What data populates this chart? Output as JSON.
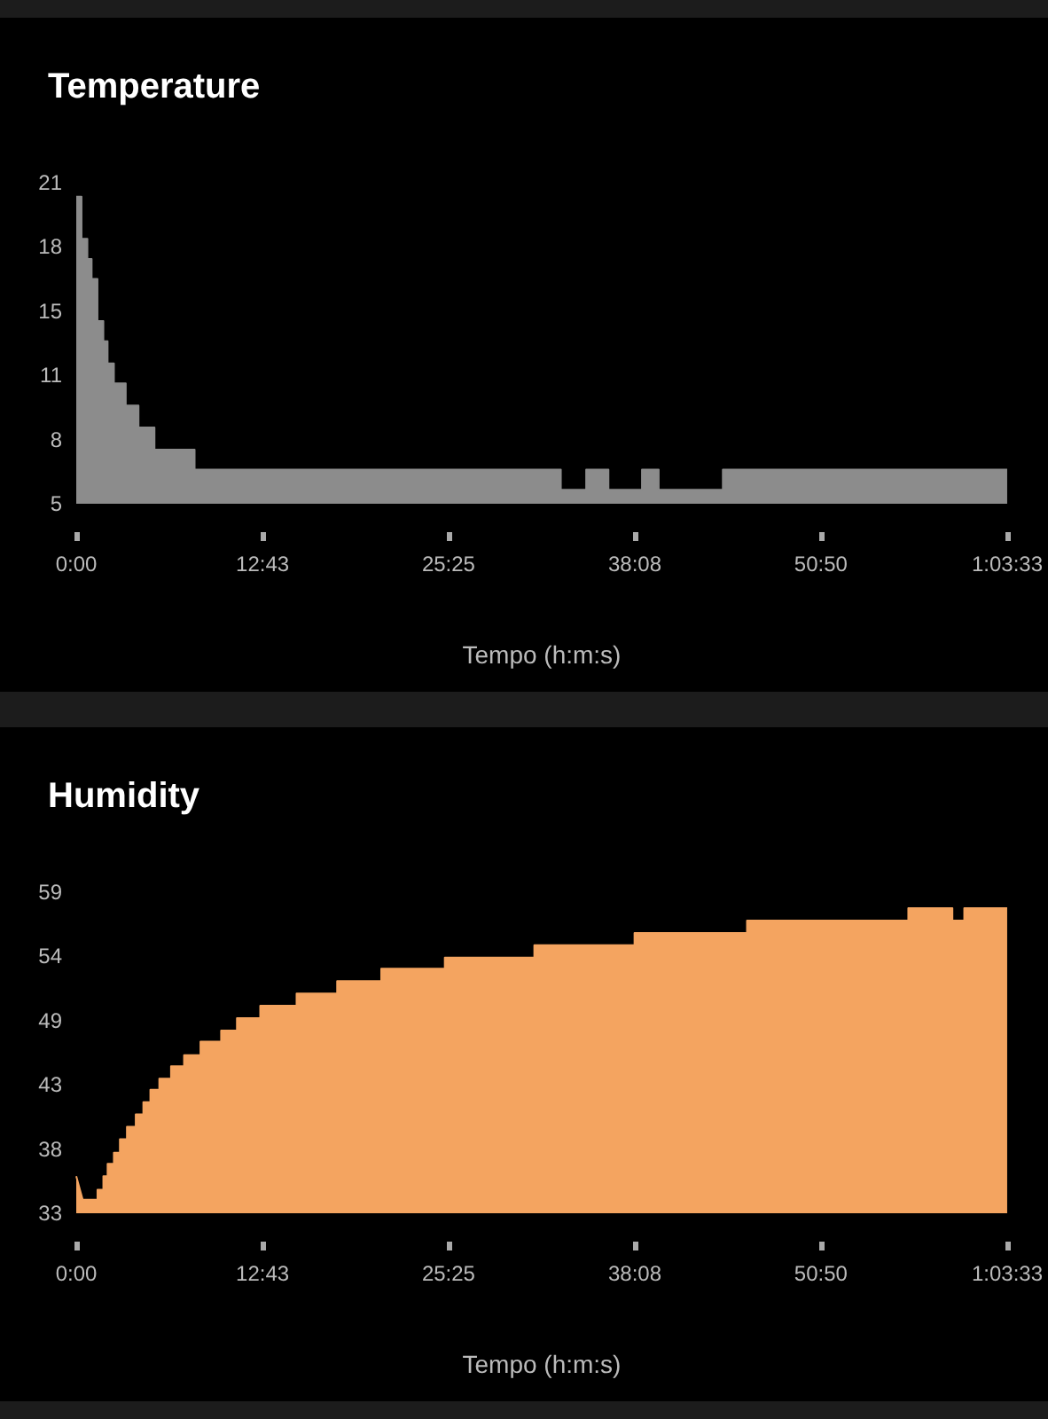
{
  "chart_data": [
    {
      "type": "area",
      "title": "Temperature",
      "xlabel": "Tempo (h:m:s)",
      "color": "#8c8c8c",
      "xlim": [
        0,
        63.55
      ],
      "xticks": [
        {
          "value": 0,
          "label": "0:00"
        },
        {
          "value": 12.7167,
          "label": "12:43"
        },
        {
          "value": 25.4167,
          "label": "25:25"
        },
        {
          "value": 38.1333,
          "label": "38:08"
        },
        {
          "value": 50.8333,
          "label": "50:50"
        },
        {
          "value": 63.55,
          "label": "1:03:33"
        }
      ],
      "ylim": [
        5,
        21
      ],
      "yticks": [
        5,
        {
          "value": 8.2,
          "label": "8"
        },
        {
          "value": 11.4,
          "label": "11"
        },
        {
          "value": 14.6,
          "label": "15"
        },
        {
          "value": 17.8,
          "label": "18"
        },
        21
      ],
      "x": [
        0,
        0.36,
        0.36,
        0.76,
        0.76,
        1.05,
        1.05,
        1.45,
        1.45,
        1.85,
        1.85,
        2.14,
        2.14,
        2.57,
        2.57,
        3.38,
        3.38,
        4.25,
        4.25,
        5.34,
        5.34,
        8.08,
        8.08,
        33.08,
        33.08,
        34.81,
        34.81,
        36.33,
        36.33,
        38.62,
        38.62,
        39.76,
        39.76,
        44.14,
        44.14,
        63.55
      ],
      "values": [
        20.3,
        20.3,
        18.2,
        18.2,
        17.2,
        17.2,
        16.2,
        16.2,
        14.1,
        14.1,
        13.1,
        13.1,
        12.0,
        12.0,
        11.0,
        11.0,
        9.9,
        9.9,
        8.8,
        8.8,
        7.7,
        7.7,
        6.7,
        6.7,
        5.7,
        5.7,
        6.7,
        6.7,
        5.7,
        5.7,
        6.7,
        6.7,
        5.7,
        5.7,
        6.7,
        6.7
      ]
    },
    {
      "type": "area",
      "title": "Humidity",
      "xlabel": "Tempo (h:m:s)",
      "color": "#f4a460",
      "xlim": [
        0,
        63.55
      ],
      "xticks": [
        {
          "value": 0,
          "label": "0:00"
        },
        {
          "value": 12.7167,
          "label": "12:43"
        },
        {
          "value": 25.4167,
          "label": "25:25"
        },
        {
          "value": 38.1333,
          "label": "38:08"
        },
        {
          "value": 50.8333,
          "label": "50:50"
        },
        {
          "value": 63.55,
          "label": "1:03:33"
        }
      ],
      "ylim": [
        33,
        59
      ],
      "yticks": [
        33,
        {
          "value": 38.2,
          "label": "38"
        },
        {
          "value": 43.4,
          "label": "43"
        },
        {
          "value": 48.6,
          "label": "49"
        },
        {
          "value": 53.8,
          "label": "54"
        },
        59
      ],
      "x": [
        0,
        0.44,
        1.45,
        1.45,
        1.85,
        1.85,
        2.14,
        2.14,
        2.57,
        2.57,
        2.98,
        2.98,
        3.46,
        3.46,
        4.06,
        4.06,
        4.58,
        4.58,
        5.06,
        5.06,
        5.67,
        5.67,
        6.47,
        6.47,
        7.36,
        7.36,
        8.48,
        8.48,
        9.89,
        9.89,
        10.97,
        10.97,
        12.56,
        12.56,
        15.04,
        15.04,
        17.81,
        17.81,
        20.82,
        20.82,
        25.16,
        25.16,
        31.27,
        31.27,
        38.11,
        38.11,
        45.79,
        45.79,
        56.8,
        56.8,
        59.81,
        59.81,
        60.62,
        60.62,
        63.55
      ],
      "values": [
        36.0,
        34.1,
        34.1,
        34.9,
        34.9,
        36.0,
        36.0,
        37.0,
        37.0,
        37.9,
        37.9,
        39.0,
        39.0,
        40.0,
        40.0,
        41.0,
        41.0,
        42.0,
        42.0,
        43.0,
        43.0,
        43.9,
        43.9,
        44.9,
        44.9,
        45.8,
        45.8,
        46.9,
        46.9,
        47.8,
        47.8,
        48.8,
        48.8,
        49.8,
        49.8,
        50.8,
        50.8,
        51.8,
        51.8,
        52.8,
        52.8,
        53.7,
        53.7,
        54.7,
        54.7,
        55.7,
        55.7,
        56.7,
        56.7,
        57.7,
        57.7,
        56.7,
        56.7,
        57.7,
        57.7
      ]
    }
  ]
}
